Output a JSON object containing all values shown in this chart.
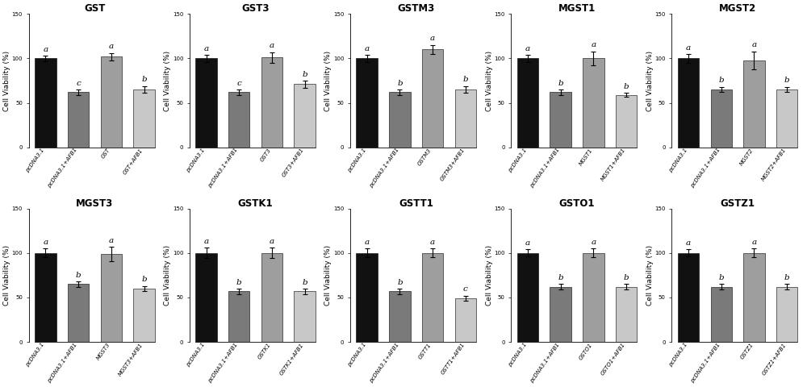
{
  "panels": [
    {
      "title": "GST",
      "labels": [
        "pcDNA3.1",
        "pcDNA3.1+AFB1",
        "GST",
        "GST+AFB1"
      ],
      "values": [
        100,
        62,
        102,
        65
      ],
      "errors": [
        3,
        3,
        4,
        4
      ],
      "letters": [
        "a",
        "c",
        "a",
        "b"
      ],
      "colors": [
        "#111111",
        "#7a7a7a",
        "#9e9e9e",
        "#c8c8c8"
      ]
    },
    {
      "title": "GST3",
      "labels": [
        "pcDNA3.1",
        "pcDNA3.1+AFB1",
        "GST3",
        "GST3+AFB1"
      ],
      "values": [
        100,
        62,
        101,
        71
      ],
      "errors": [
        4,
        3,
        6,
        4
      ],
      "letters": [
        "a",
        "c",
        "a",
        "b"
      ],
      "colors": [
        "#111111",
        "#7a7a7a",
        "#9e9e9e",
        "#c8c8c8"
      ]
    },
    {
      "title": "GSTM3",
      "labels": [
        "pcDNA3.1",
        "pcDNA3.1+AFB1",
        "GSTM3",
        "GSTM3+AFB1"
      ],
      "values": [
        100,
        62,
        110,
        65
      ],
      "errors": [
        4,
        3,
        5,
        4
      ],
      "letters": [
        "a",
        "b",
        "a",
        "b"
      ],
      "colors": [
        "#111111",
        "#7a7a7a",
        "#9e9e9e",
        "#c8c8c8"
      ]
    },
    {
      "title": "MGST1",
      "labels": [
        "pcDNA3.1",
        "pcDNA3.1+AFB1",
        "MGST1",
        "MGST1+AFB1"
      ],
      "values": [
        100,
        62,
        100,
        59
      ],
      "errors": [
        4,
        3,
        8,
        2
      ],
      "letters": [
        "a",
        "b",
        "a",
        "b"
      ],
      "colors": [
        "#111111",
        "#7a7a7a",
        "#9e9e9e",
        "#c8c8c8"
      ]
    },
    {
      "title": "MGST2",
      "labels": [
        "pcDNA3.1",
        "pcDNA3.1+AFB1",
        "MGST2",
        "MGST2+AFB1"
      ],
      "values": [
        100,
        65,
        98,
        65
      ],
      "errors": [
        5,
        3,
        10,
        3
      ],
      "letters": [
        "a",
        "b",
        "a",
        "b"
      ],
      "colors": [
        "#111111",
        "#7a7a7a",
        "#9e9e9e",
        "#c8c8c8"
      ]
    },
    {
      "title": "MGST3",
      "labels": [
        "pcDNA3.1",
        "pcDNA3.1+AFB1",
        "MGST3",
        "MGST3+AFB1"
      ],
      "values": [
        100,
        65,
        99,
        60
      ],
      "errors": [
        5,
        3,
        8,
        3
      ],
      "letters": [
        "a",
        "b",
        "a",
        "b"
      ],
      "colors": [
        "#111111",
        "#7a7a7a",
        "#9e9e9e",
        "#c8c8c8"
      ]
    },
    {
      "title": "GSTK1",
      "labels": [
        "pcDNA3.1",
        "pcDNA3.1+AFB1",
        "GSTK1",
        "GSTK1+AFB1"
      ],
      "values": [
        100,
        57,
        100,
        57
      ],
      "errors": [
        6,
        3,
        6,
        3
      ],
      "letters": [
        "a",
        "b",
        "a",
        "b"
      ],
      "colors": [
        "#111111",
        "#7a7a7a",
        "#9e9e9e",
        "#c8c8c8"
      ]
    },
    {
      "title": "GSTT1",
      "labels": [
        "pcDNA3.1",
        "pcDNA3.1+AFB1",
        "GSTT1",
        "GSTT1+AFB1"
      ],
      "values": [
        100,
        57,
        100,
        49
      ],
      "errors": [
        5,
        3,
        5,
        3
      ],
      "letters": [
        "a",
        "b",
        "a",
        "c"
      ],
      "colors": [
        "#111111",
        "#7a7a7a",
        "#9e9e9e",
        "#c8c8c8"
      ]
    },
    {
      "title": "GSTO1",
      "labels": [
        "pcDNA3.1",
        "pcDNA3.1+AFB1",
        "GSTO1",
        "GSTO1+AFB1"
      ],
      "values": [
        100,
        62,
        100,
        62
      ],
      "errors": [
        4,
        3,
        5,
        3
      ],
      "letters": [
        "a",
        "b",
        "a",
        "b"
      ],
      "colors": [
        "#111111",
        "#7a7a7a",
        "#9e9e9e",
        "#c8c8c8"
      ]
    },
    {
      "title": "GSTZ1",
      "labels": [
        "pcDNA3.1",
        "pcDNA3.1+AFB1",
        "GSTZ1",
        "GSTZ1+AFB1"
      ],
      "values": [
        100,
        62,
        100,
        62
      ],
      "errors": [
        4,
        3,
        5,
        3
      ],
      "letters": [
        "a",
        "b",
        "a",
        "b"
      ],
      "colors": [
        "#111111",
        "#7a7a7a",
        "#9e9e9e",
        "#c8c8c8"
      ]
    }
  ],
  "ylim": [
    0,
    150
  ],
  "yticks": [
    0,
    50,
    100,
    150
  ],
  "ylabel": "Cell Viability (%)",
  "bar_width": 0.65,
  "title_fontsize": 8.5,
  "tick_fontsize": 5.0,
  "letter_fontsize": 7.5,
  "ylabel_fontsize": 6.5,
  "background_color": "#ffffff"
}
